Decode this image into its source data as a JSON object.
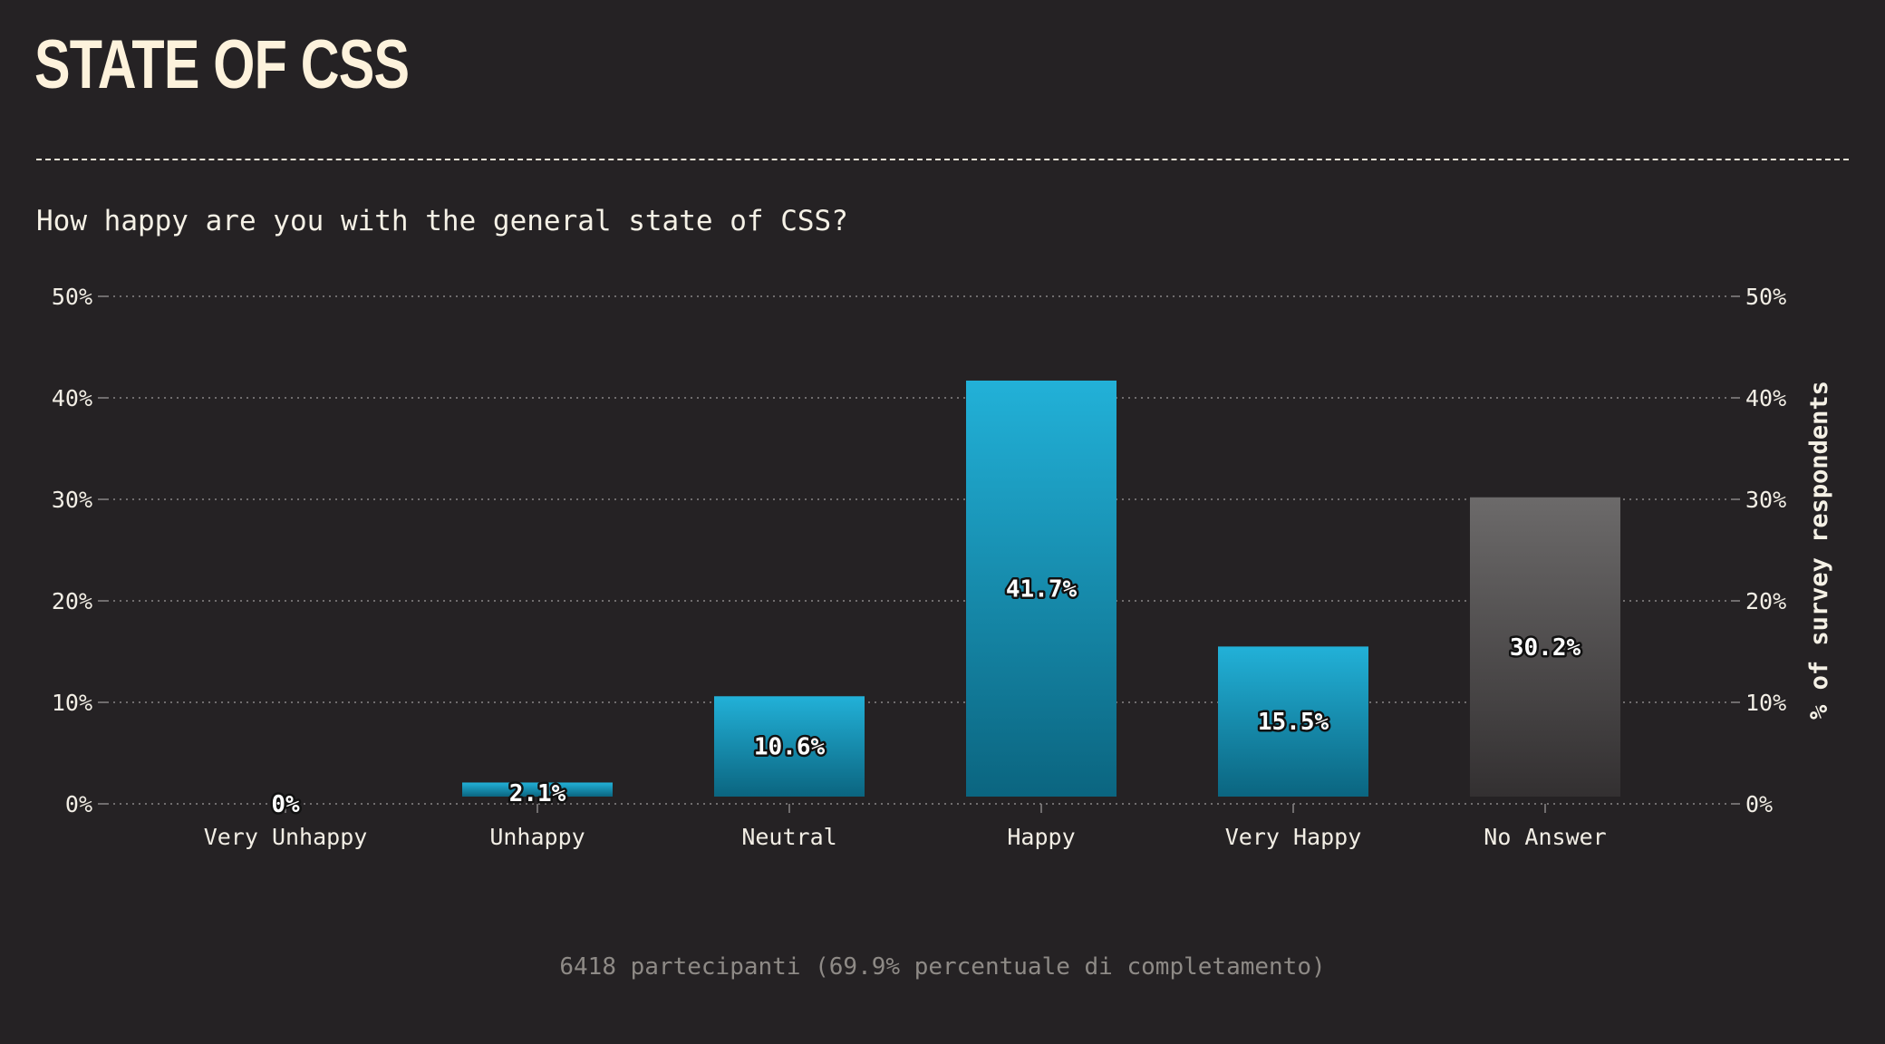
{
  "header": {
    "title": "STATE OF CSS"
  },
  "question": "How happy are you with the general state of CSS?",
  "footer": "6418 partecipanti (69.9% percentuale di completamento)",
  "colors": {
    "background": "#252224",
    "bar_top": "#22b1d8",
    "bar_bottom": "#0b6580",
    "no_answer_top": "#6c6a6a",
    "no_answer_bottom": "#333031",
    "text": "#f5f1e6",
    "footer_text": "#8e8a86"
  },
  "chart_data": {
    "type": "bar",
    "categories": [
      "Very Unhappy",
      "Unhappy",
      "Neutral",
      "Happy",
      "Very Happy",
      "No Answer"
    ],
    "values": [
      0,
      2.1,
      10.6,
      41.7,
      15.5,
      30.2
    ],
    "value_labels": [
      "0%",
      "2.1%",
      "10.6%",
      "41.7%",
      "15.5%",
      "30.2%"
    ],
    "ylabel": "% of survey respondents",
    "ylim": [
      0,
      50
    ],
    "yticks": [
      0,
      10,
      20,
      30,
      40,
      50
    ],
    "ytick_labels": [
      "0%",
      "10%",
      "20%",
      "30%",
      "40%",
      "50%"
    ],
    "grid": true,
    "secondary_y_axis": true,
    "muted_categories": [
      "No Answer"
    ]
  }
}
